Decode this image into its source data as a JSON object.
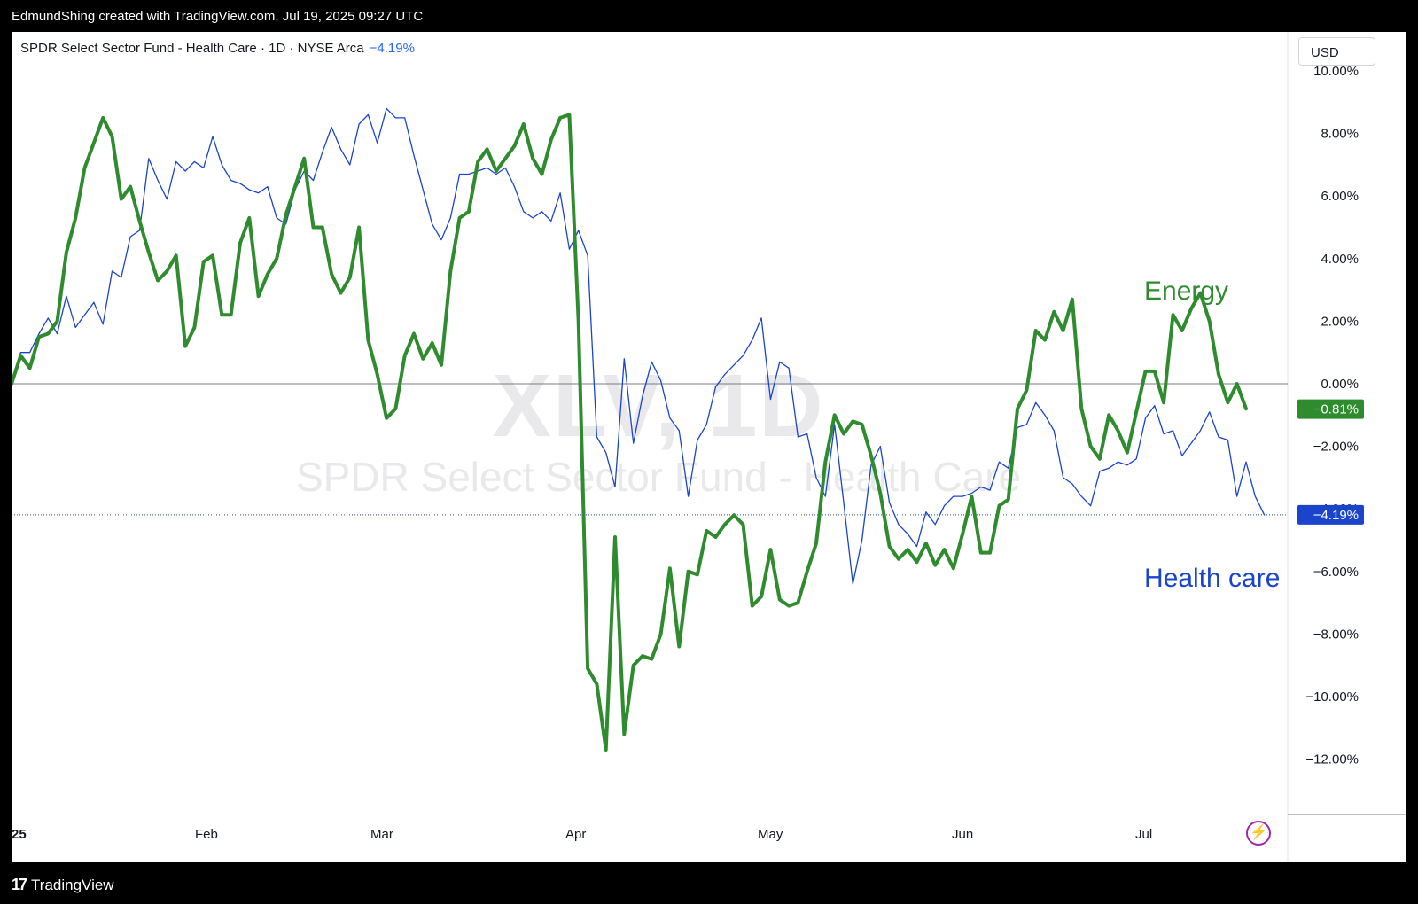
{
  "header": {
    "attribution": "EdmundShing created with TradingView.com, Jul 19, 2025 09:27 UTC"
  },
  "legend": {
    "title": "SPDR Select Sector Fund - Health Care · 1D · NYSE Arca",
    "change": "−4.19%"
  },
  "currency": "USD",
  "watermark": {
    "ticker": "XLV, 1D",
    "name": "SPDR Select Sector Fund - Health Care"
  },
  "footer": {
    "brand": "TradingView"
  },
  "colors": {
    "energy": "#2e8b2e",
    "health": "#1a44cc",
    "axis_text": "#131722",
    "zero_line": "#787b86"
  },
  "icons": {
    "flash": "lightning-bolt-icon",
    "logo": "tradingview-logo-icon"
  },
  "chart_data": {
    "type": "line",
    "xlabel": "",
    "ylabel": "",
    "ylim": [
      -14,
      10
    ],
    "y_ticks": [
      "10.00%",
      "8.00%",
      "6.00%",
      "4.00%",
      "2.00%",
      "0.00%",
      "−2.00%",
      "−4.00%",
      "−6.00%",
      "−8.00%",
      "−10.00%",
      "−12.00%"
    ],
    "x_tick_labels": [
      "25",
      "Feb",
      "Mar",
      "Apr",
      "May",
      "Jun",
      "Jul"
    ],
    "series": [
      {
        "name": "Energy",
        "last_label": "−0.81%",
        "last_value": -0.81,
        "values": [
          0,
          0.9,
          0.5,
          1.5,
          1.6,
          2.0,
          4.2,
          5.3,
          6.9,
          7.7,
          8.5,
          7.9,
          5.9,
          6.3,
          5.2,
          4.2,
          3.3,
          3.6,
          4.1,
          1.2,
          1.8,
          3.9,
          4.1,
          2.2,
          2.2,
          4.5,
          5.3,
          2.8,
          3.5,
          4.0,
          5.4,
          6.3,
          7.2,
          5.0,
          5.0,
          3.5,
          2.9,
          3.4,
          5.0,
          1.4,
          0.3,
          -1.1,
          -0.8,
          0.9,
          1.6,
          0.8,
          1.3,
          0.6,
          3.6,
          5.3,
          5.5,
          7.1,
          7.5,
          6.8,
          7.2,
          7.6,
          8.3,
          7.2,
          6.7,
          7.8,
          8.5,
          8.6,
          2.0,
          -9.1,
          -9.6,
          -11.7,
          -4.9,
          -11.2,
          -9.0,
          -8.7,
          -8.8,
          -8.0,
          -5.9,
          -8.4,
          -6.0,
          -6.1,
          -4.7,
          -4.9,
          -4.5,
          -4.2,
          -4.5,
          -7.1,
          -6.8,
          -5.3,
          -6.9,
          -7.1,
          -7.0,
          -6.0,
          -5.1,
          -2.5,
          -1.0,
          -1.6,
          -1.2,
          -1.3,
          -2.3,
          -3.5,
          -5.2,
          -5.6,
          -5.3,
          -5.7,
          -5.1,
          -5.8,
          -5.3,
          -5.9,
          -4.8,
          -3.6,
          -5.4,
          -5.4,
          -3.9,
          -3.7,
          -0.8,
          -0.2,
          1.7,
          1.4,
          2.3,
          1.7,
          2.7,
          -0.8,
          -2.0,
          -2.4,
          -1.0,
          -1.5,
          -2.2,
          -0.9,
          0.4,
          0.4,
          -0.6,
          2.2,
          1.7,
          2.4,
          2.9,
          2.0,
          0.3,
          -0.6,
          0.0,
          -0.8
        ]
      },
      {
        "name": "Health care",
        "last_label": "−4.19%",
        "last_value": -4.19,
        "values": [
          0,
          1.0,
          1.0,
          1.6,
          2.1,
          1.6,
          2.8,
          1.8,
          2.2,
          2.6,
          1.9,
          3.6,
          3.4,
          4.7,
          4.9,
          7.2,
          6.5,
          5.9,
          7.1,
          6.8,
          7.1,
          6.9,
          7.9,
          7.0,
          6.5,
          6.4,
          6.2,
          6.1,
          6.3,
          5.3,
          5.1,
          6.2,
          6.8,
          6.5,
          7.4,
          8.2,
          7.5,
          7.0,
          8.3,
          8.6,
          7.7,
          8.8,
          8.5,
          8.5,
          7.3,
          6.2,
          5.1,
          4.6,
          5.3,
          6.7,
          6.7,
          6.8,
          6.9,
          6.7,
          6.9,
          6.3,
          5.5,
          5.3,
          5.5,
          5.2,
          6.1,
          4.3,
          4.9,
          4.1,
          -1.7,
          -2.2,
          -3.3,
          0.8,
          -1.9,
          -0.4,
          0.7,
          0.1,
          -1.1,
          -1.5,
          -3.6,
          -1.8,
          -1.3,
          -0.1,
          0.3,
          0.6,
          0.9,
          1.4,
          2.1,
          -0.5,
          0.7,
          0.5,
          -1.7,
          -1.6,
          -3.0,
          -3.6,
          -1.3,
          -3.8,
          -6.4,
          -5.0,
          -2.6,
          -2.0,
          -3.8,
          -4.5,
          -4.8,
          -5.2,
          -4.1,
          -4.5,
          -3.9,
          -3.6,
          -3.6,
          -3.5,
          -3.3,
          -3.4,
          -2.5,
          -2.7,
          -1.4,
          -1.3,
          -0.6,
          -1.0,
          -1.5,
          -3.0,
          -3.2,
          -3.6,
          -3.9,
          -2.8,
          -2.7,
          -2.5,
          -2.6,
          -2.4,
          -1.1,
          -0.7,
          -1.6,
          -1.5,
          -2.3,
          -1.9,
          -1.5,
          -0.9,
          -1.7,
          -1.8,
          -3.6,
          -2.5,
          -3.6,
          -4.19
        ]
      }
    ]
  }
}
